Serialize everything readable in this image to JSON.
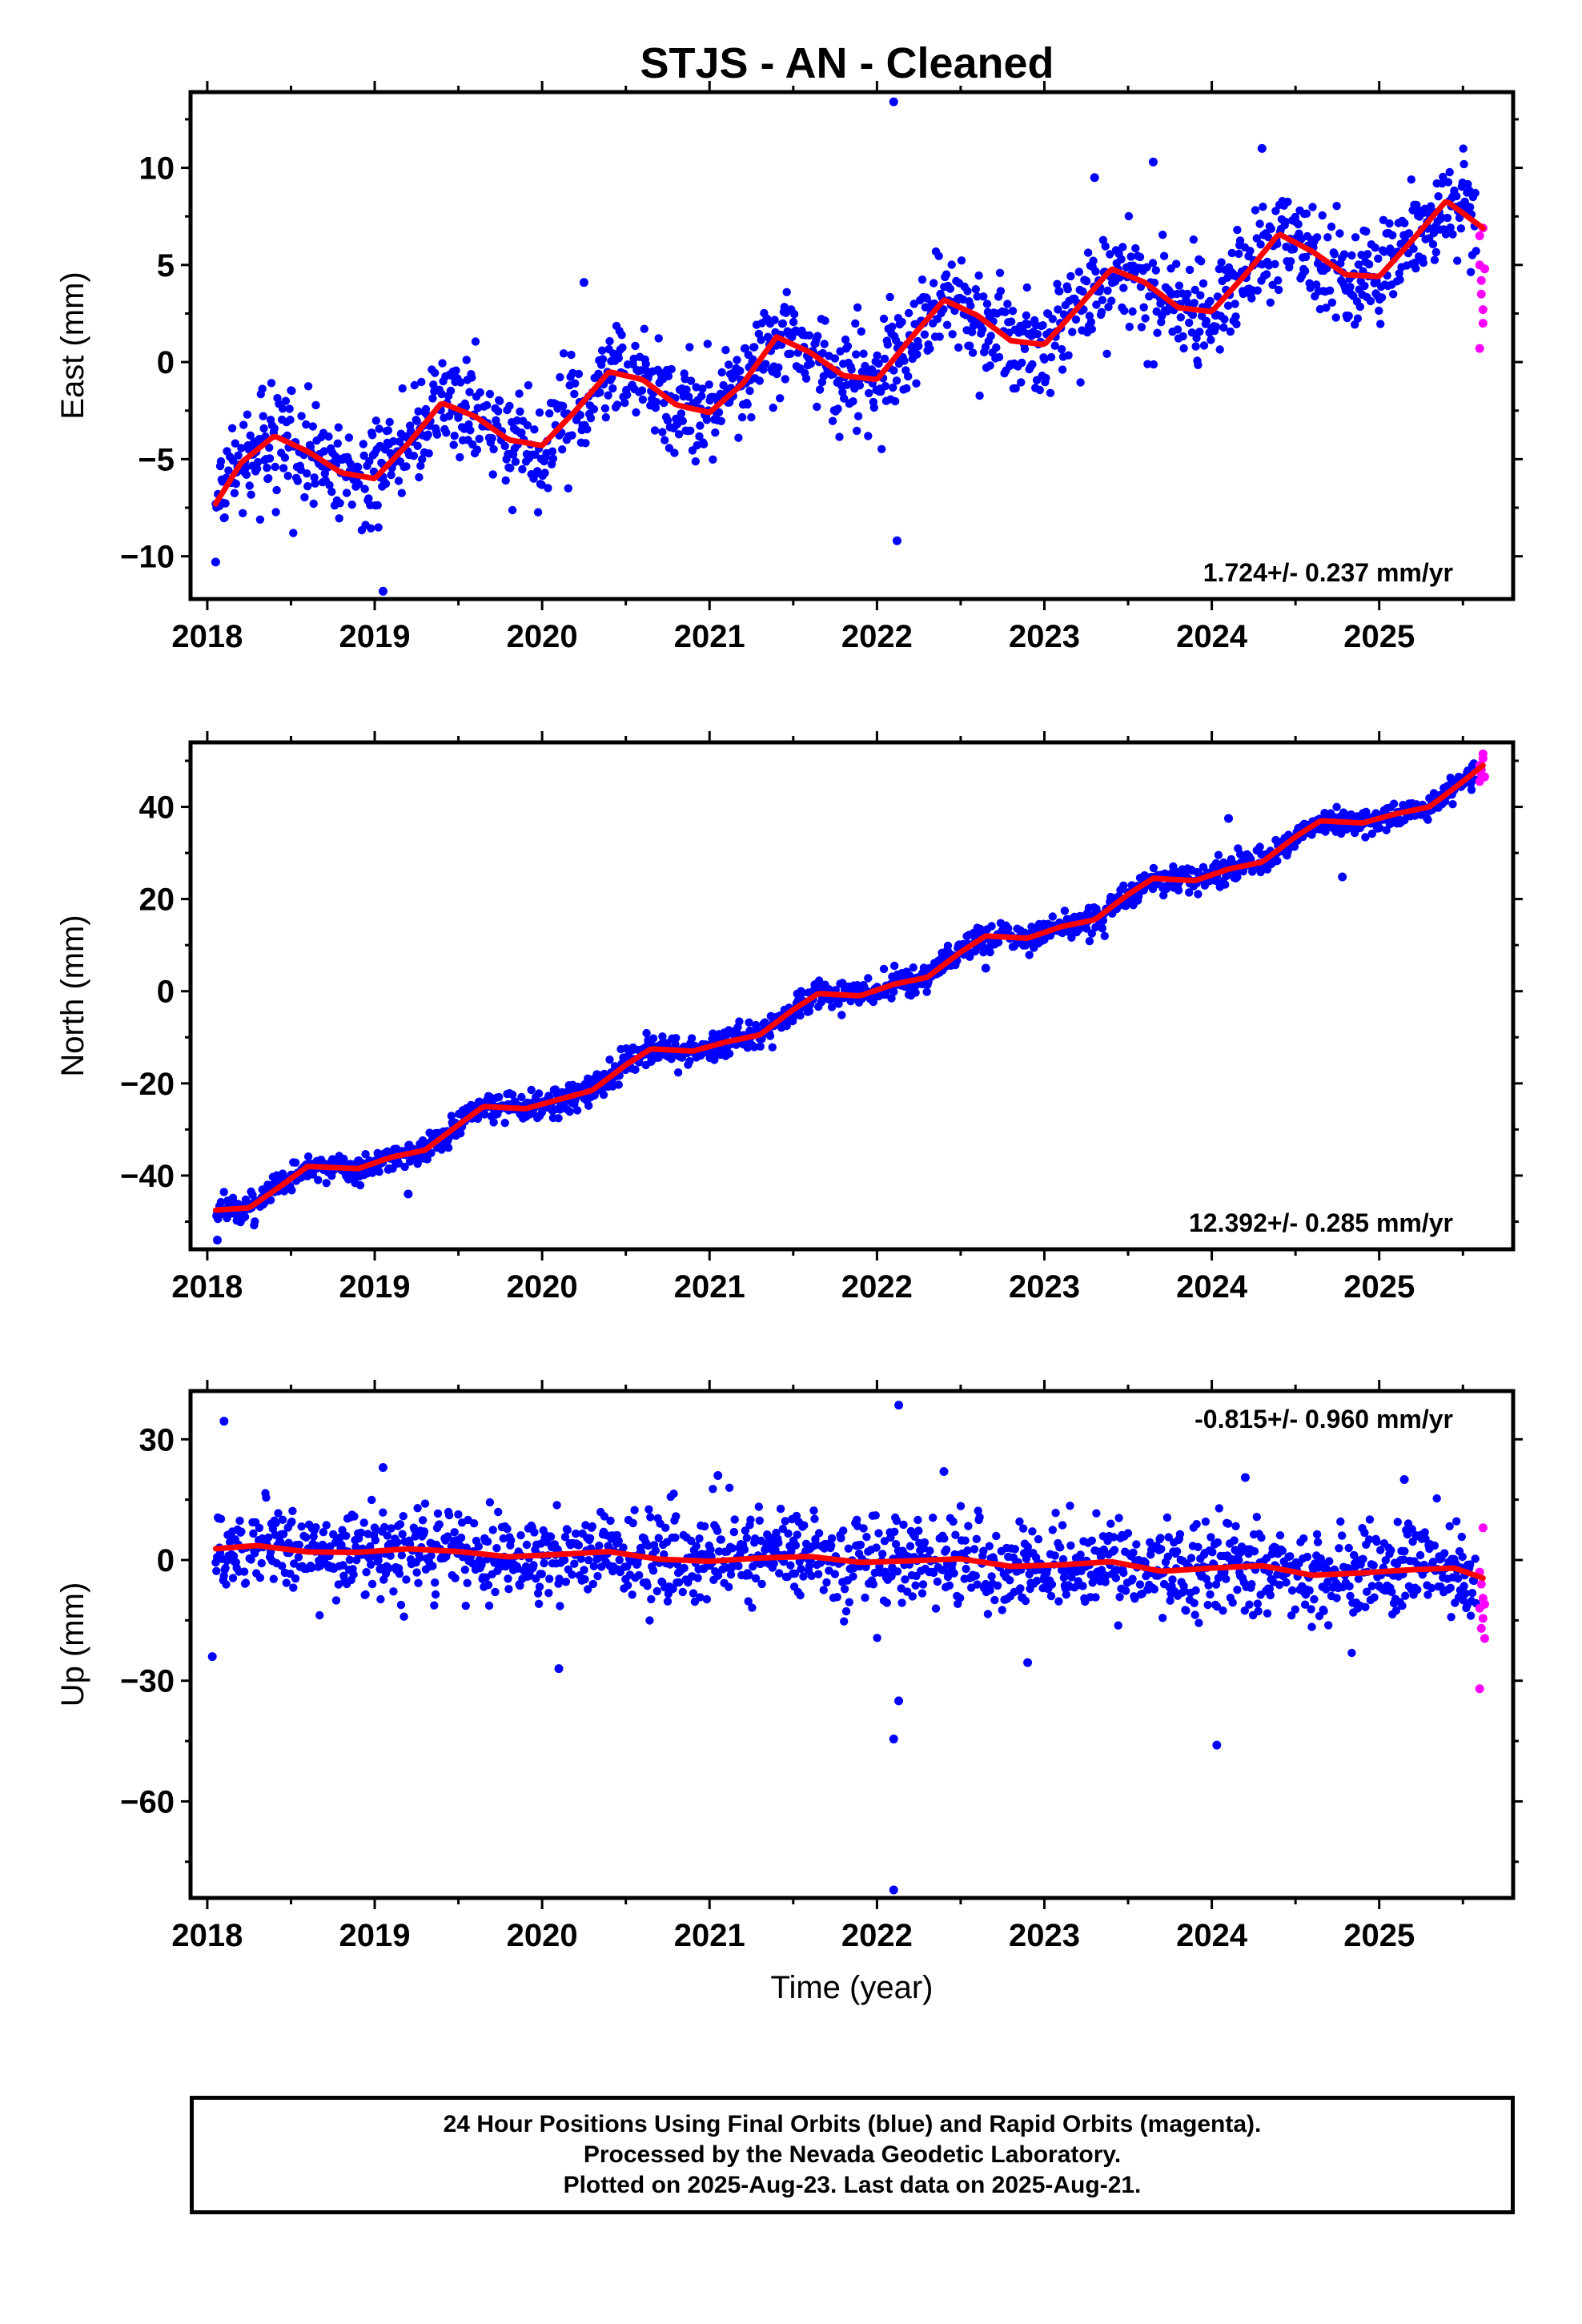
{
  "title": "STJS  - AN - Cleaned",
  "colors": {
    "final": "#0000ff",
    "rapid": "#ff00ff",
    "model": "#ff0000",
    "axis": "#000000"
  },
  "footer": {
    "line1": "24 Hour Positions Using Final Orbits (blue) and Rapid Orbits (magenta).",
    "line2": "Processed by the Nevada Geodetic Laboratory.",
    "line3": "Plotted on 2025-Aug-23. Last data on 2025-Aug-21."
  },
  "chart_data": [
    {
      "type": "scatter",
      "ylabel": "East (mm)",
      "xlabel": "",
      "xlim": [
        2017.9,
        2025.8
      ],
      "ylim": [
        -12.2,
        13.9
      ],
      "yticks": [
        -10,
        -5,
        0,
        5,
        10
      ],
      "yticklabels": [
        "−10",
        "−5",
        "0",
        "5",
        "10"
      ],
      "xticks": [
        2018,
        2019,
        2020,
        2021,
        2022,
        2023,
        2024,
        2025
      ],
      "xticklabels": [
        "2018",
        "2019",
        "2020",
        "2021",
        "2022",
        "2023",
        "2024",
        "2025"
      ],
      "rate": "1.724+/- 0.237 mm/yr",
      "rate_position": "bottom-right",
      "trend": {
        "rate": 1.724,
        "offset": -5.1,
        "amplitude": 1.8,
        "phase": 0.28
      },
      "model_curve": {
        "x": [
          2018.05,
          2018.2,
          2018.4,
          2018.6,
          2018.8,
          2019.0,
          2019.2,
          2019.4,
          2019.6,
          2019.8,
          2020.0,
          2020.2,
          2020.4,
          2020.6,
          2020.8,
          2021.0,
          2021.2,
          2021.4,
          2021.6,
          2021.8,
          2022.0,
          2022.2,
          2022.4,
          2022.6,
          2022.8,
          2023.0,
          2023.2,
          2023.4,
          2023.6,
          2023.8,
          2024.0,
          2024.2,
          2024.4,
          2024.6,
          2024.8,
          2025.0,
          2025.2,
          2025.4,
          2025.62
        ],
        "y": [
          -7.3,
          -5.2,
          -3.8,
          -4.6,
          -5.7,
          -6.0,
          -4.2,
          -2.1,
          -2.8,
          -4.0,
          -4.3,
          -2.5,
          -0.5,
          -0.9,
          -2.2,
          -2.6,
          -1.1,
          1.3,
          0.5,
          -0.7,
          -0.9,
          1.2,
          3.2,
          2.4,
          1.1,
          0.9,
          2.8,
          4.8,
          4.1,
          2.8,
          2.6,
          4.5,
          6.6,
          5.7,
          4.5,
          4.4,
          6.3,
          8.3,
          6.9
        ]
      },
      "scatter_spread": 1.3,
      "outliers": [
        [
          2022.1,
          13.4
        ],
        [
          2022.12,
          -9.2
        ],
        [
          2019.05,
          -11.8
        ],
        [
          2023.65,
          10.3
        ],
        [
          2024.3,
          11.0
        ],
        [
          2018.05,
          -10.3
        ],
        [
          2023.3,
          9.5
        ],
        [
          2020.25,
          4.1
        ]
      ],
      "rapid_points": [
        [
          2025.6,
          6.5
        ],
        [
          2025.6,
          5.0
        ],
        [
          2025.61,
          4.2
        ],
        [
          2025.61,
          3.5
        ],
        [
          2025.62,
          2.7
        ],
        [
          2025.62,
          2.0
        ],
        [
          2025.6,
          0.7
        ],
        [
          2025.63,
          4.8
        ],
        [
          2025.62,
          6.9
        ]
      ]
    },
    {
      "type": "scatter",
      "ylabel": "North (mm)",
      "xlabel": "",
      "xlim": [
        2017.9,
        2025.8
      ],
      "ylim": [
        -56.0,
        54.0
      ],
      "yticks": [
        -40,
        -20,
        0,
        20,
        40
      ],
      "yticklabels": [
        "−40",
        "−20",
        "0",
        "20",
        "40"
      ],
      "xticks": [
        2018,
        2019,
        2020,
        2021,
        2022,
        2023,
        2024,
        2025
      ],
      "xticklabels": [
        "2018",
        "2019",
        "2020",
        "2021",
        "2022",
        "2023",
        "2024",
        "2025"
      ],
      "rate": "12.392+/- 0.285 mm/yr",
      "rate_position": "bottom-right",
      "trend": {
        "rate": 12.392,
        "offset": -47.5,
        "amplitude": 1.5,
        "phase": 0.6
      },
      "model_curve": {
        "x": [
          2018.05,
          2018.25,
          2018.45,
          2018.6,
          2018.9,
          2019.1,
          2019.3,
          2019.5,
          2019.65,
          2019.9,
          2020.1,
          2020.3,
          2020.5,
          2020.65,
          2020.9,
          2021.1,
          2021.3,
          2021.5,
          2021.65,
          2021.9,
          2022.1,
          2022.3,
          2022.5,
          2022.65,
          2022.9,
          2023.1,
          2023.3,
          2023.5,
          2023.65,
          2023.9,
          2024.1,
          2024.3,
          2024.5,
          2024.65,
          2024.9,
          2025.1,
          2025.3,
          2025.5,
          2025.62
        ],
        "y": [
          -47.5,
          -47.0,
          -42.0,
          -38.0,
          -38.5,
          -36.0,
          -34.5,
          -29.0,
          -25.0,
          -25.5,
          -23.5,
          -21.5,
          -16.0,
          -12.5,
          -13.0,
          -11.0,
          -9.5,
          -4.0,
          -0.5,
          -1.0,
          1.5,
          3.0,
          8.5,
          12.0,
          11.5,
          14.0,
          15.5,
          21.0,
          24.5,
          24.0,
          26.5,
          28.0,
          33.5,
          37.0,
          36.5,
          38.5,
          40.0,
          45.5,
          49.0
        ]
      },
      "scatter_spread": 1.5,
      "outliers": [
        [
          2024.78,
          24.8
        ],
        [
          2024.1,
          37.5
        ],
        [
          2018.06,
          -54.0
        ],
        [
          2022.65,
          5.0
        ],
        [
          2019.2,
          -44.0
        ]
      ],
      "rapid_points": [
        [
          2025.6,
          45.5
        ],
        [
          2025.61,
          47.0
        ],
        [
          2025.6,
          49.0
        ],
        [
          2025.62,
          50.5
        ],
        [
          2025.61,
          48.0
        ],
        [
          2025.63,
          46.5
        ],
        [
          2025.62,
          51.5
        ]
      ]
    },
    {
      "type": "scatter",
      "ylabel": "Up (mm)",
      "xlabel": "Time (year)",
      "xlim": [
        2017.9,
        2025.8
      ],
      "ylim": [
        -84.0,
        42.0
      ],
      "yticks": [
        -60,
        -30,
        0,
        30
      ],
      "yticklabels": [
        "−60",
        "−30",
        "0",
        "30"
      ],
      "xticks": [
        2018,
        2019,
        2020,
        2021,
        2022,
        2023,
        2024,
        2025
      ],
      "xticklabels": [
        "2018",
        "2019",
        "2020",
        "2021",
        "2022",
        "2023",
        "2024",
        "2025"
      ],
      "rate": "-0.815+/- 0.960 mm/yr",
      "rate_position": "top-right",
      "trend": {
        "rate": -0.815,
        "offset": 3.0,
        "amplitude": 1.0,
        "phase": 0.2
      },
      "model_curve": {
        "x": [
          2018.05,
          2018.3,
          2018.6,
          2018.9,
          2019.2,
          2019.5,
          2019.8,
          2020.1,
          2020.4,
          2020.7,
          2021.0,
          2021.3,
          2021.6,
          2021.9,
          2022.2,
          2022.5,
          2022.8,
          2023.1,
          2023.4,
          2023.7,
          2024.0,
          2024.3,
          2024.6,
          2024.9,
          2025.2,
          2025.45,
          2025.62
        ],
        "y": [
          2.8,
          3.6,
          2.0,
          1.9,
          2.8,
          2.1,
          0.8,
          1.4,
          2.1,
          0.2,
          -0.3,
          0.5,
          0.9,
          -0.6,
          -0.2,
          0.3,
          -1.6,
          -1.2,
          -0.4,
          -2.8,
          -2.0,
          -1.4,
          -3.8,
          -3.2,
          -2.4,
          -2.0,
          -4.5
        ]
      },
      "scatter_spread": 5.5,
      "outliers": [
        [
          2018.1,
          34.5
        ],
        [
          2022.13,
          38.5
        ],
        [
          2022.1,
          -44.5
        ],
        [
          2022.13,
          -35.0
        ],
        [
          2022.1,
          -82.0
        ],
        [
          2024.03,
          -46.0
        ],
        [
          2018.03,
          -24.0
        ],
        [
          2020.1,
          -27.0
        ],
        [
          2022.9,
          -25.5
        ],
        [
          2022.4,
          22.0
        ],
        [
          2019.05,
          23.0
        ],
        [
          2025.15,
          20.0
        ],
        [
          2024.2,
          20.5
        ],
        [
          2021.05,
          21.0
        ]
      ],
      "rapid_points": [
        [
          2025.6,
          -3.0
        ],
        [
          2025.61,
          -6.0
        ],
        [
          2025.62,
          -9.5
        ],
        [
          2025.6,
          -12.0
        ],
        [
          2025.62,
          -14.5
        ],
        [
          2025.61,
          -17.0
        ],
        [
          2025.63,
          -19.5
        ],
        [
          2025.62,
          8.0
        ],
        [
          2025.6,
          -32.0
        ],
        [
          2025.63,
          -11.0
        ]
      ]
    }
  ]
}
